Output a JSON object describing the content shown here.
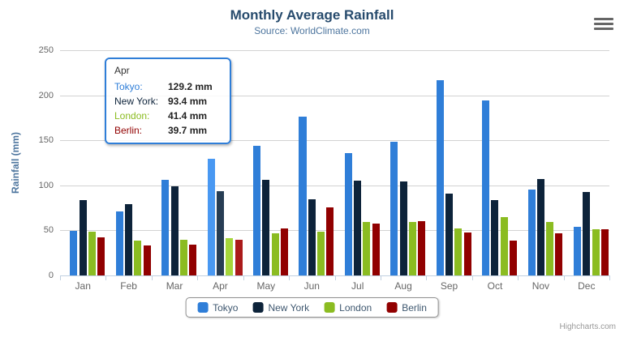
{
  "header": {
    "title": "Monthly Average Rainfall",
    "subtitle": "Source: WorldClimate.com"
  },
  "credits": "Highcharts.com",
  "menu_icon": "hamburger-context-menu",
  "chart_data": {
    "type": "bar",
    "title": "Monthly Average Rainfall",
    "subtitle": "Source: WorldClimate.com",
    "categories": [
      "Jan",
      "Feb",
      "Mar",
      "Apr",
      "May",
      "Jun",
      "Jul",
      "Aug",
      "Sep",
      "Oct",
      "Nov",
      "Dec"
    ],
    "series": [
      {
        "name": "Tokyo",
        "color": "#2f7ed8",
        "hover_color": "#4998f2",
        "values": [
          49.9,
          71.5,
          106.4,
          129.2,
          144.0,
          176.0,
          135.6,
          148.5,
          216.4,
          194.1,
          95.6,
          54.4
        ]
      },
      {
        "name": "New York",
        "color": "#0d233a",
        "hover_color": "#273d54",
        "values": [
          83.6,
          78.8,
          98.5,
          93.4,
          106.0,
          84.5,
          105.0,
          104.3,
          91.2,
          83.5,
          106.6,
          92.3
        ]
      },
      {
        "name": "London",
        "color": "#8bbc21",
        "hover_color": "#a5d63b",
        "values": [
          48.9,
          38.8,
          39.3,
          41.4,
          47.0,
          48.3,
          59.0,
          59.6,
          52.4,
          65.2,
          59.3,
          51.2
        ]
      },
      {
        "name": "Berlin",
        "color": "#910000",
        "hover_color": "#ab1a1a",
        "values": [
          42.4,
          33.2,
          34.5,
          39.7,
          52.6,
          75.5,
          57.4,
          60.4,
          47.6,
          39.1,
          46.8,
          51.1
        ]
      }
    ],
    "xlabel": "",
    "ylabel": "Rainfall (mm)",
    "ylim": [
      0,
      250
    ],
    "yticks": [
      0,
      50,
      100,
      150,
      200,
      250
    ],
    "grid": true,
    "legend_position": "bottom-center",
    "hovered_category": "Apr",
    "hovered_index": 3
  },
  "tooltip": {
    "header": "Apr",
    "border_color": "#2f7ed8",
    "rows": [
      {
        "label": "Tokyo:",
        "value": "129.2 mm",
        "color": "#2f7ed8"
      },
      {
        "label": "New York:",
        "value": "93.4 mm",
        "color": "#0d233a"
      },
      {
        "label": "London:",
        "value": "41.4 mm",
        "color": "#8bbc21"
      },
      {
        "label": "Berlin:",
        "value": "39.7 mm",
        "color": "#910000"
      }
    ]
  },
  "axis_colors": {
    "axis_line": "#c0d0e0",
    "grid_line": "#d2d2d2",
    "tick_label": "#666666",
    "axis_title": "#4d759e"
  }
}
